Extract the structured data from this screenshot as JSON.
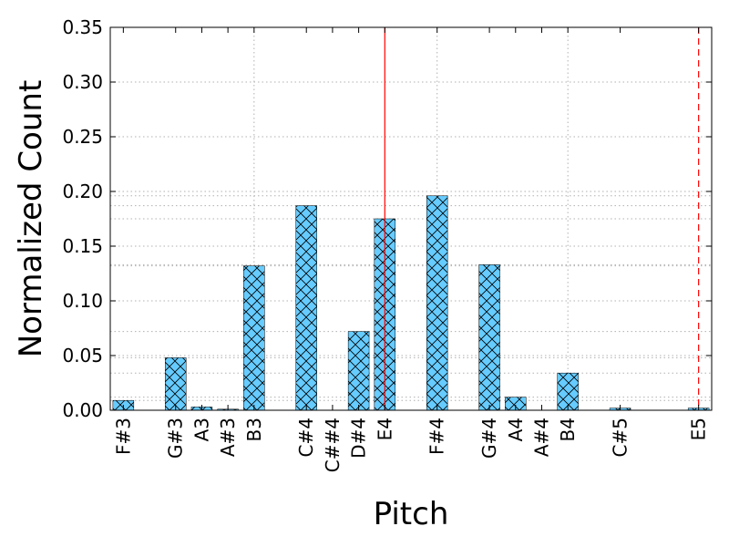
{
  "chart_data": {
    "type": "bar",
    "xlabel": "Pitch",
    "ylabel": "Normalized Count",
    "ylim": [
      0,
      0.35
    ],
    "yticks": [
      "0.00",
      "0.05",
      "0.10",
      "0.15",
      "0.20",
      "0.25",
      "0.30",
      "0.35"
    ],
    "ytick_values": [
      0,
      0.05,
      0.1,
      0.15,
      0.2,
      0.25,
      0.3,
      0.35
    ],
    "semitone_range": [
      -0.5,
      22.5
    ],
    "categories": [
      "F#3",
      "G#3",
      "A3",
      "A#3",
      "B3",
      "C#4",
      "C##4",
      "D#4",
      "E4",
      "F#4",
      "G#4",
      "A4",
      "A#4",
      "B4",
      "C#5",
      "E5"
    ],
    "semitones": [
      0,
      2,
      3,
      4,
      5,
      7,
      8,
      9,
      10,
      12,
      14,
      15,
      16,
      17,
      19,
      22
    ],
    "values": [
      0.009,
      0.048,
      0.003,
      0.001,
      0.132,
      0.187,
      0.0,
      0.072,
      0.175,
      0.196,
      0.133,
      0.012,
      0.0,
      0.034,
      0.002,
      0.002
    ],
    "bar_color": "#66ccff",
    "hatch": "cross",
    "vertical_lines": [
      {
        "semitone": 10,
        "color": "#ff0000",
        "style": "solid"
      },
      {
        "semitone": 22,
        "color": "#ff0000",
        "style": "dashed"
      }
    ],
    "vertical_grid_semitones": [
      5,
      12,
      17
    ],
    "horizontal_value_gridlines": [
      0.196,
      0.187,
      0.175,
      0.133,
      0.132,
      0.072,
      0.048,
      0.034,
      0.012,
      0.009
    ],
    "grid": true,
    "grid_color": "#b0b0b0"
  }
}
